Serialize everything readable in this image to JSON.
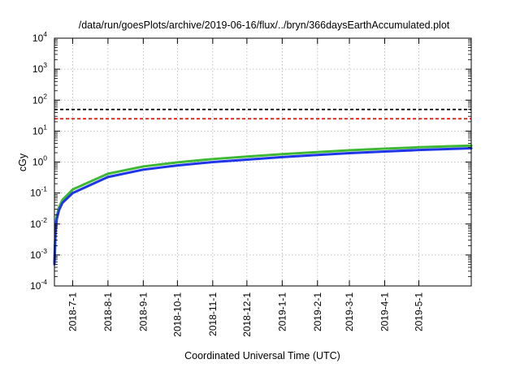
{
  "chart_data": {
    "type": "line",
    "title": "/data/run/goesPlots/archive/2019-06-16/flux/../bryn/366daysEarthAccumulated.plot",
    "xlabel": "Coordinated Universal Time (UTC)",
    "ylabel": "cGy",
    "x_range": [
      "2018-06-15",
      "2019-06-16"
    ],
    "y_scale": "log",
    "ylim": [
      0.0001,
      10000
    ],
    "y_ticks": [
      {
        "base": "10",
        "exp": "-4"
      },
      {
        "base": "10",
        "exp": "-3"
      },
      {
        "base": "10",
        "exp": "-2"
      },
      {
        "base": "10",
        "exp": "-1"
      },
      {
        "base": "10",
        "exp": "0"
      },
      {
        "base": "10",
        "exp": "1"
      },
      {
        "base": "10",
        "exp": "2"
      },
      {
        "base": "10",
        "exp": "3"
      },
      {
        "base": "10",
        "exp": "4"
      }
    ],
    "x_ticks": [
      "2018-7-1",
      "2018-8-1",
      "2018-9-1",
      "2018-10-1",
      "2018-11-1",
      "2018-12-1",
      "2019-1-1",
      "2019-2-1",
      "2019-3-1",
      "2019-4-1",
      "2019-5-1"
    ],
    "grid": true,
    "reference_lines": [
      {
        "value": 50,
        "color": "#000000",
        "style": "dashed"
      },
      {
        "value": 25,
        "color": "#e8221a",
        "style": "dashed"
      }
    ],
    "series": [
      {
        "color": "#3fb836",
        "x": [
          "2018-06-15",
          "2018-06-16",
          "2018-06-17",
          "2018-06-19",
          "2018-06-22",
          "2018-07-01",
          "2018-08-01",
          "2018-09-01",
          "2018-10-01",
          "2018-11-01",
          "2018-12-01",
          "2019-01-01",
          "2019-02-01",
          "2019-03-01",
          "2019-04-01",
          "2019-05-01",
          "2019-06-16"
        ],
        "y": [
          0.0006,
          0.008,
          0.018,
          0.035,
          0.06,
          0.13,
          0.42,
          0.72,
          0.98,
          1.25,
          1.5,
          1.8,
          2.1,
          2.4,
          2.7,
          3.0,
          3.4
        ]
      },
      {
        "color": "#1f35e8",
        "x": [
          "2018-06-15",
          "2018-06-16",
          "2018-06-17",
          "2018-06-19",
          "2018-06-22",
          "2018-07-01",
          "2018-08-01",
          "2018-09-01",
          "2018-10-01",
          "2018-11-01",
          "2018-12-01",
          "2019-01-01",
          "2019-02-01",
          "2019-03-01",
          "2019-04-01",
          "2019-05-01",
          "2019-06-16"
        ],
        "y": [
          0.0005,
          0.006,
          0.014,
          0.028,
          0.048,
          0.1,
          0.33,
          0.57,
          0.78,
          1.0,
          1.2,
          1.45,
          1.7,
          1.95,
          2.2,
          2.45,
          2.8
        ]
      }
    ]
  }
}
